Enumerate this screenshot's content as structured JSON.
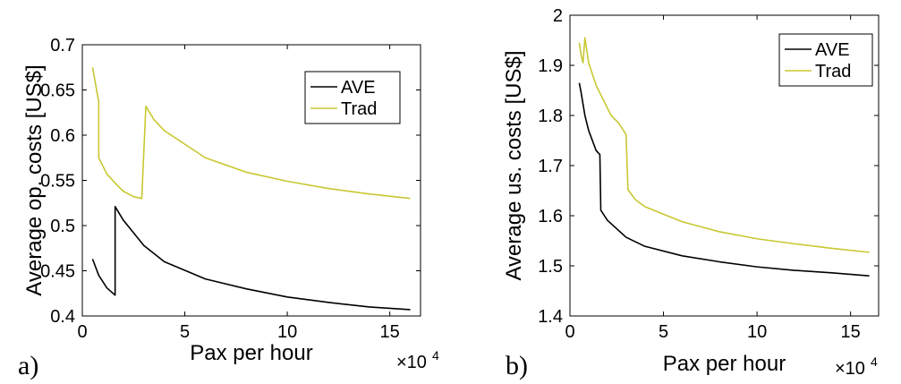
{
  "chart_data": [
    {
      "type": "line",
      "panel_label": "a)",
      "xlabel": "Pax per hour",
      "x_multiplier": "×10",
      "x_multiplier_exp": "4",
      "ylabel": "Average op. costs [US$]",
      "xlim": [
        0,
        165000
      ],
      "ylim": [
        0.4,
        0.7
      ],
      "xticks": [
        0,
        50000,
        100000,
        150000
      ],
      "xtick_labels": [
        "0",
        "5",
        "10",
        "15"
      ],
      "yticks": [
        0.4,
        0.45,
        0.5,
        0.55,
        0.6,
        0.65,
        0.7
      ],
      "ytick_labels": [
        "0.4",
        "0.45",
        "0.5",
        "0.55",
        "0.6",
        "0.65",
        "0.7"
      ],
      "grid": false,
      "legend": "top-right",
      "series": [
        {
          "name": "AVE",
          "color": "#000000",
          "x": [
            5000,
            8000,
            12000,
            16000,
            16001,
            20000,
            30000,
            40000,
            60000,
            80000,
            100000,
            120000,
            140000,
            160000
          ],
          "y": [
            0.463,
            0.445,
            0.431,
            0.423,
            0.521,
            0.506,
            0.478,
            0.46,
            0.441,
            0.43,
            0.421,
            0.415,
            0.41,
            0.407
          ]
        },
        {
          "name": "Trad",
          "color": "#c8c832",
          "x": [
            5000,
            8000,
            8001,
            12000,
            16000,
            20000,
            25000,
            29000,
            31000,
            35000,
            40000,
            60000,
            80000,
            100000,
            120000,
            140000,
            160000
          ],
          "y": [
            0.675,
            0.637,
            0.575,
            0.557,
            0.547,
            0.538,
            0.532,
            0.53,
            0.632,
            0.617,
            0.605,
            0.575,
            0.559,
            0.549,
            0.541,
            0.535,
            0.53
          ]
        }
      ]
    },
    {
      "type": "line",
      "panel_label": "b)",
      "xlabel": "Pax per hour",
      "x_multiplier": "×10",
      "x_multiplier_exp": "4",
      "ylabel": "Average us. costs [US$]",
      "xlim": [
        0,
        165000
      ],
      "ylim": [
        1.4,
        2.0
      ],
      "xticks": [
        0,
        50000,
        100000,
        150000
      ],
      "xtick_labels": [
        "0",
        "5",
        "10",
        "15"
      ],
      "yticks": [
        1.4,
        1.5,
        1.6,
        1.7,
        1.8,
        1.9,
        2.0
      ],
      "ytick_labels": [
        "1.4",
        "1.5",
        "1.6",
        "1.7",
        "1.8",
        "1.9",
        "2"
      ],
      "grid": false,
      "legend": "top-right",
      "series": [
        {
          "name": "AVE",
          "color": "#000000",
          "x": [
            5000,
            6000,
            8000,
            10000,
            14000,
            16000,
            16500,
            20000,
            30000,
            40000,
            60000,
            80000,
            100000,
            120000,
            140000,
            160000
          ],
          "y": [
            1.865,
            1.845,
            1.8,
            1.77,
            1.73,
            1.722,
            1.611,
            1.591,
            1.557,
            1.539,
            1.52,
            1.508,
            1.498,
            1.491,
            1.486,
            1.48
          ]
        },
        {
          "name": "Trad",
          "color": "#c8c832",
          "x": [
            5000,
            6000,
            7000,
            8000,
            10000,
            14000,
            18000,
            22000,
            26000,
            30000,
            31000,
            35000,
            40000,
            60000,
            80000,
            100000,
            120000,
            140000,
            160000
          ],
          "y": [
            1.945,
            1.92,
            1.905,
            1.955,
            1.905,
            1.86,
            1.83,
            1.8,
            1.785,
            1.762,
            1.652,
            1.632,
            1.618,
            1.588,
            1.568,
            1.554,
            1.544,
            1.535,
            1.527
          ]
        }
      ]
    }
  ]
}
